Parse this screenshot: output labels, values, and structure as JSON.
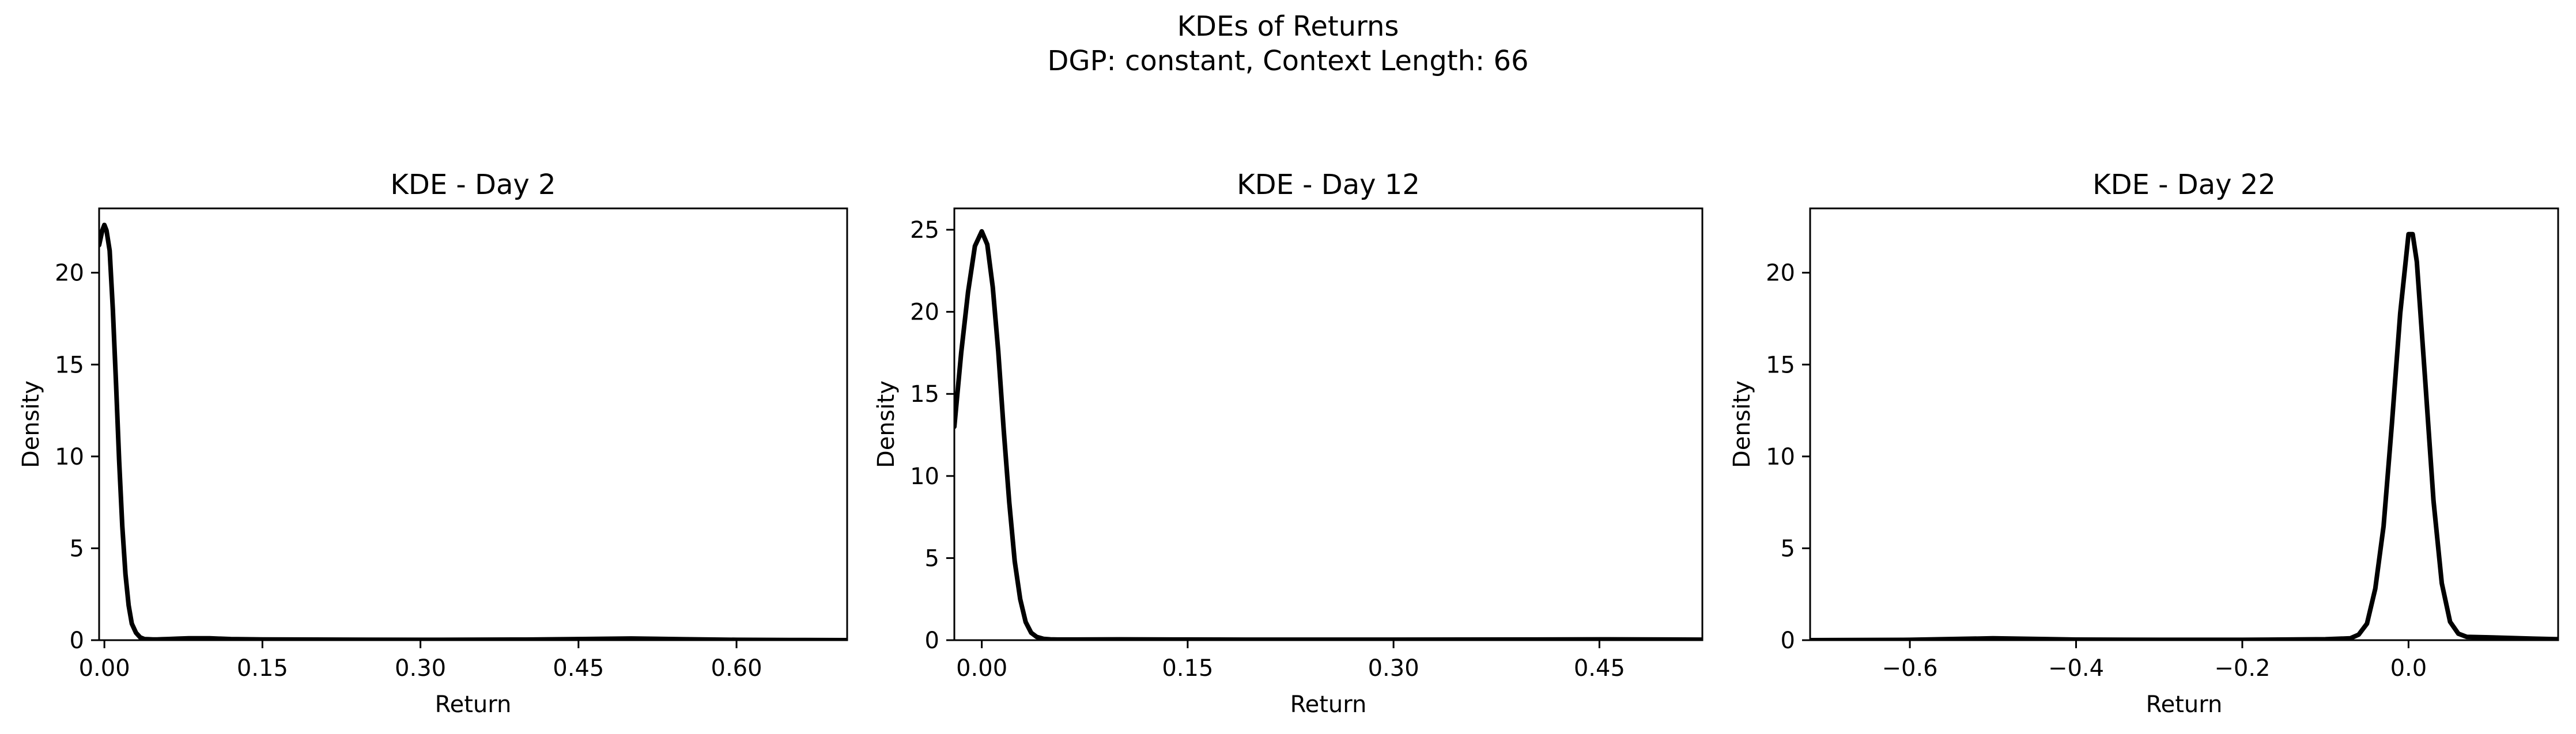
{
  "figure": {
    "title_line1": "KDEs of Returns",
    "title_line2": "DGP: constant, Context Length: 66"
  },
  "chart_data": [
    {
      "type": "line",
      "title": "KDE - Day 2",
      "xlabel": "Return",
      "ylabel": "Density",
      "xlim": [
        -0.005,
        0.705
      ],
      "ylim": [
        0,
        23.5
      ],
      "xticks": [
        0.0,
        0.15,
        0.3,
        0.45,
        0.6
      ],
      "xtick_labels": [
        "0.00",
        "0.15",
        "0.30",
        "0.45",
        "0.60"
      ],
      "yticks": [
        0,
        5,
        10,
        15,
        20
      ],
      "ytick_labels": [
        "0",
        "5",
        "10",
        "15",
        "20"
      ],
      "grid": false,
      "color": "#000000",
      "series": [
        {
          "x": [
            -0.005,
            -0.002,
            0.0,
            0.002,
            0.005,
            0.008,
            0.011,
            0.014,
            0.017,
            0.02,
            0.023,
            0.026,
            0.03,
            0.034,
            0.038,
            0.042,
            0.046,
            0.05,
            0.055,
            0.06,
            0.07,
            0.08,
            0.1,
            0.12,
            0.15,
            0.2,
            0.3,
            0.4,
            0.45,
            0.5,
            0.55,
            0.6,
            0.65,
            0.705
          ],
          "y": [
            21.5,
            22.3,
            22.6,
            22.3,
            21.2,
            18.0,
            14.0,
            9.8,
            6.2,
            3.6,
            1.9,
            0.9,
            0.4,
            0.15,
            0.06,
            0.05,
            0.04,
            0.04,
            0.05,
            0.06,
            0.08,
            0.1,
            0.1,
            0.06,
            0.04,
            0.03,
            0.02,
            0.03,
            0.06,
            0.09,
            0.05,
            0.02,
            0.01,
            0.0
          ]
        }
      ]
    },
    {
      "type": "line",
      "title": "KDE - Day 12",
      "xlabel": "Return",
      "ylabel": "Density",
      "xlim": [
        -0.02,
        0.525
      ],
      "ylim": [
        0,
        26.3
      ],
      "xticks": [
        0.0,
        0.15,
        0.3,
        0.45
      ],
      "xtick_labels": [
        "0.00",
        "0.15",
        "0.30",
        "0.45"
      ],
      "yticks": [
        0,
        5,
        10,
        15,
        20,
        25
      ],
      "ytick_labels": [
        "0",
        "5",
        "10",
        "15",
        "20",
        "25"
      ],
      "grid": false,
      "color": "#000000",
      "series": [
        {
          "x": [
            -0.02,
            -0.015,
            -0.01,
            -0.005,
            0.0,
            0.004,
            0.008,
            0.012,
            0.016,
            0.02,
            0.024,
            0.028,
            0.032,
            0.036,
            0.04,
            0.045,
            0.05,
            0.055,
            0.06,
            0.07,
            0.1,
            0.15,
            0.2,
            0.3,
            0.4,
            0.45,
            0.5,
            0.525
          ],
          "y": [
            13.0,
            17.5,
            21.2,
            24.0,
            24.9,
            24.1,
            21.5,
            17.6,
            12.8,
            8.4,
            4.8,
            2.5,
            1.1,
            0.45,
            0.2,
            0.08,
            0.05,
            0.04,
            0.04,
            0.04,
            0.05,
            0.04,
            0.03,
            0.03,
            0.04,
            0.05,
            0.04,
            0.03
          ]
        }
      ]
    },
    {
      "type": "line",
      "title": "KDE - Day 22",
      "xlabel": "Return",
      "ylabel": "Density",
      "xlim": [
        -0.72,
        0.18
      ],
      "ylim": [
        0,
        23.5
      ],
      "xticks": [
        -0.6,
        -0.4,
        -0.2,
        0.0
      ],
      "xtick_labels": [
        "−0.6",
        "−0.4",
        "−0.2",
        "0.0"
      ],
      "yticks": [
        0,
        5,
        10,
        15,
        20
      ],
      "ytick_labels": [
        "0",
        "5",
        "10",
        "15",
        "20"
      ],
      "grid": false,
      "color": "#000000",
      "series": [
        {
          "x": [
            -0.72,
            -0.6,
            -0.5,
            -0.4,
            -0.3,
            -0.2,
            -0.1,
            -0.07,
            -0.06,
            -0.05,
            -0.04,
            -0.03,
            -0.02,
            -0.01,
            0.0,
            0.005,
            0.01,
            0.02,
            0.03,
            0.04,
            0.05,
            0.06,
            0.07,
            0.1,
            0.15,
            0.18
          ],
          "y": [
            0.0,
            0.02,
            0.1,
            0.03,
            0.02,
            0.02,
            0.05,
            0.1,
            0.3,
            0.9,
            2.8,
            6.2,
            11.8,
            17.8,
            22.1,
            22.1,
            20.6,
            14.2,
            7.6,
            3.1,
            1.0,
            0.35,
            0.18,
            0.15,
            0.08,
            0.05
          ]
        }
      ]
    }
  ]
}
